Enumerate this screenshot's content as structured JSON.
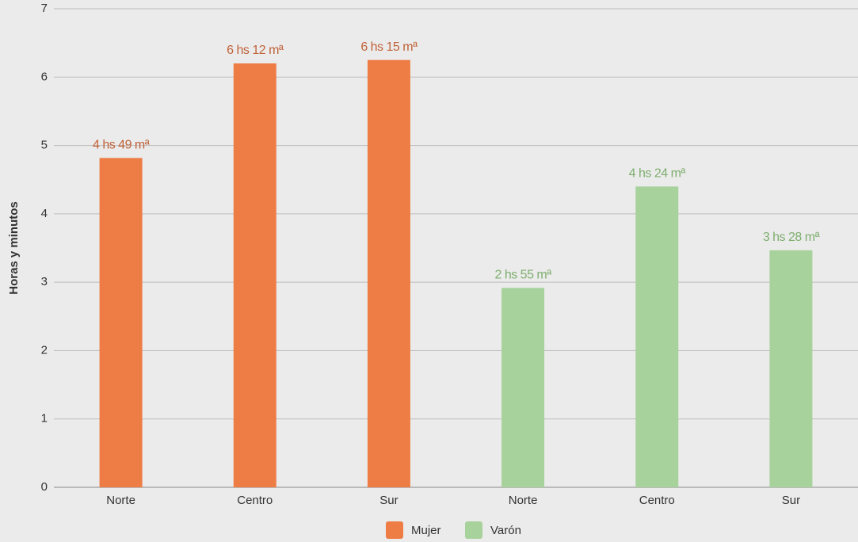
{
  "chart_data": {
    "type": "bar",
    "y_label": "Horas y minutos",
    "categories": [
      "Norte",
      "Centro",
      "Sur",
      "Norte",
      "Centro",
      "Sur"
    ],
    "series": [
      {
        "name": "Mujer",
        "color": "#ee7d45",
        "label_color": "#c0633a",
        "values": [
          4.817,
          6.2,
          6.25,
          null,
          null,
          null
        ],
        "value_labels": [
          "4 hs 49 mª",
          "6 hs 12 mª",
          "6 hs 15 mª",
          null,
          null,
          null
        ]
      },
      {
        "name": "Varón",
        "color": "#a8d29c",
        "label_color": "#7fae6f",
        "values": [
          null,
          null,
          null,
          2.917,
          4.4,
          3.467
        ],
        "value_labels": [
          null,
          null,
          null,
          "2 hs 55 mª",
          "4 hs 24 mª",
          "3 hs 28 mª"
        ]
      }
    ],
    "ylim": [
      0,
      7
    ],
    "yticks": [
      0,
      1,
      2,
      3,
      4,
      5,
      6,
      7
    ],
    "grid": true,
    "legend": "bottom"
  }
}
